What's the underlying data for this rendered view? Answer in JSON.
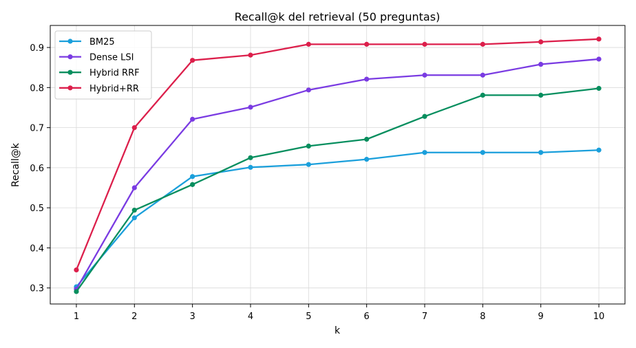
{
  "chart_data": {
    "type": "line",
    "title": "Recall@k del retrieval (50 preguntas)",
    "xlabel": "k",
    "ylabel": "Recall@k",
    "x": [
      1,
      2,
      3,
      4,
      5,
      6,
      7,
      8,
      9,
      10
    ],
    "xlim": [
      0.55,
      10.45
    ],
    "ylim": [
      0.26,
      0.955
    ],
    "xticks": [
      1,
      2,
      3,
      4,
      5,
      6,
      7,
      8,
      9,
      10
    ],
    "yticks": [
      0.3,
      0.4,
      0.5,
      0.6,
      0.7,
      0.8,
      0.9
    ],
    "grid": true,
    "legend_position": "top-left",
    "series": [
      {
        "name": "BM25",
        "color": "#1a9fdb",
        "values": [
          0.303,
          0.475,
          0.578,
          0.601,
          0.608,
          0.621,
          0.638,
          0.638,
          0.638,
          0.644
        ]
      },
      {
        "name": "Dense LSI",
        "color": "#7a3be2",
        "values": [
          0.297,
          0.55,
          0.721,
          0.751,
          0.794,
          0.821,
          0.831,
          0.831,
          0.858,
          0.871
        ]
      },
      {
        "name": "Hybrid RRF",
        "color": "#068e5e",
        "values": [
          0.291,
          0.494,
          0.558,
          0.625,
          0.654,
          0.671,
          0.728,
          0.781,
          0.781,
          0.798
        ]
      },
      {
        "name": "Hybrid+RR",
        "color": "#dc1f4b",
        "values": [
          0.345,
          0.7,
          0.868,
          0.881,
          0.908,
          0.908,
          0.908,
          0.908,
          0.914,
          0.921
        ]
      }
    ]
  }
}
